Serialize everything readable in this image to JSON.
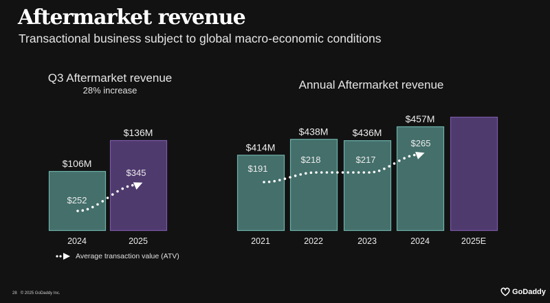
{
  "slide": {
    "title": "Aftermarket revenue",
    "subtitle": "Transactional business subject to global macro-economic conditions",
    "page_number": "28",
    "copyright": "© 2025 GoDaddy Inc.",
    "brand": "GoDaddy"
  },
  "legend": {
    "icon": "dotted-arrow-icon",
    "label": "Average transaction value (ATV)"
  },
  "colors": {
    "actual_bar": "#446f6b",
    "actual_border": "#6fb3aa",
    "current_bar": "#4f3a6e",
    "current_border": "#7a5aa6",
    "background": "#121212",
    "line": "#ffffff"
  },
  "chart_data": [
    {
      "type": "bar",
      "title": "Q3 Aftermarket revenue",
      "subtitle": "28% increase",
      "categories": [
        "2024",
        "2025"
      ],
      "values": [
        106,
        136
      ],
      "value_labels": [
        "$106M",
        "$136M"
      ],
      "unit": "$M",
      "highlight": [
        false,
        true
      ],
      "overlay_line": {
        "name": "Average transaction value (ATV)",
        "values": [
          252,
          345
        ],
        "labels": [
          "$252",
          "$345"
        ],
        "style": "dotted-arrow"
      }
    },
    {
      "type": "bar",
      "title": "Annual Aftermarket revenue",
      "categories": [
        "2021",
        "2022",
        "2023",
        "2024",
        "2025E"
      ],
      "values": [
        414,
        438,
        436,
        457,
        null
      ],
      "value_labels": [
        "$414M",
        "$438M",
        "$436M",
        "$457M",
        ""
      ],
      "unit": "$M",
      "highlight": [
        false,
        false,
        false,
        false,
        true
      ],
      "overlay_line": {
        "name": "Average transaction value (ATV)",
        "values": [
          191,
          218,
          217,
          265
        ],
        "labels": [
          "$191",
          "$218",
          "$217",
          "$265"
        ],
        "style": "dotted-arrow"
      }
    }
  ]
}
